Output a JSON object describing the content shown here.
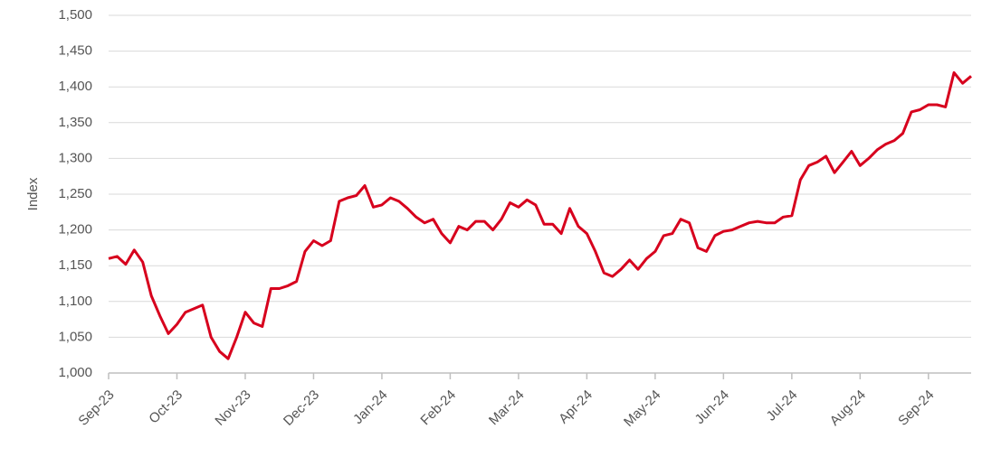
{
  "chart_data": {
    "type": "line",
    "ylabel": "Index",
    "categories": [
      "Sep-23",
      null,
      null,
      null,
      null,
      null,
      null,
      null,
      "Oct-23",
      null,
      null,
      null,
      null,
      null,
      null,
      null,
      "Nov-23",
      null,
      null,
      null,
      null,
      null,
      null,
      null,
      "Dec-23",
      null,
      null,
      null,
      null,
      null,
      null,
      null,
      "Jan-24",
      null,
      null,
      null,
      null,
      null,
      null,
      null,
      "Feb-24",
      null,
      null,
      null,
      null,
      null,
      null,
      null,
      "Mar-24",
      null,
      null,
      null,
      null,
      null,
      null,
      null,
      "Apr-24",
      null,
      null,
      null,
      null,
      null,
      null,
      null,
      "May-24",
      null,
      null,
      null,
      null,
      null,
      null,
      null,
      "Jun-24",
      null,
      null,
      null,
      null,
      null,
      null,
      null,
      "Jul-24",
      null,
      null,
      null,
      null,
      null,
      null,
      null,
      "Aug-24",
      null,
      null,
      null,
      null,
      null,
      null,
      null,
      "Sep-24",
      null,
      null,
      null,
      null,
      null
    ],
    "values": [
      1160,
      1163,
      1152,
      1172,
      1155,
      1108,
      1080,
      1055,
      1068,
      1085,
      1090,
      1095,
      1050,
      1030,
      1020,
      1050,
      1085,
      1070,
      1065,
      1118,
      1118,
      1122,
      1128,
      1170,
      1185,
      1178,
      1185,
      1240,
      1245,
      1248,
      1262,
      1232,
      1235,
      1245,
      1240,
      1230,
      1218,
      1210,
      1215,
      1195,
      1182,
      1205,
      1200,
      1212,
      1212,
      1200,
      1215,
      1238,
      1232,
      1242,
      1235,
      1208,
      1208,
      1195,
      1230,
      1205,
      1195,
      1170,
      1140,
      1135,
      1145,
      1158,
      1145,
      1160,
      1170,
      1192,
      1195,
      1215,
      1210,
      1175,
      1170,
      1192,
      1198,
      1200,
      1205,
      1210,
      1212,
      1210,
      1210,
      1218,
      1220,
      1270,
      1290,
      1295,
      1303,
      1280,
      1295,
      1310,
      1290,
      1300,
      1312,
      1320,
      1325,
      1335,
      1365,
      1368,
      1375,
      1375,
      1372,
      1420,
      1405,
      1415
    ],
    "color": "#d7001d",
    "ylim": [
      1000,
      1500
    ],
    "yticks": [
      {
        "value": 1000,
        "label": "1,000"
      },
      {
        "value": 1050,
        "label": "1,050"
      },
      {
        "value": 1100,
        "label": "1,100"
      },
      {
        "value": 1150,
        "label": "1,150"
      },
      {
        "value": 1200,
        "label": "1,200"
      },
      {
        "value": 1250,
        "label": "1,250"
      },
      {
        "value": 1300,
        "label": "1,300"
      },
      {
        "value": 1350,
        "label": "1,350"
      },
      {
        "value": 1400,
        "label": "1,400"
      },
      {
        "value": 1450,
        "label": "1,450"
      },
      {
        "value": 1500,
        "label": "1,500"
      }
    ],
    "grid": true
  }
}
